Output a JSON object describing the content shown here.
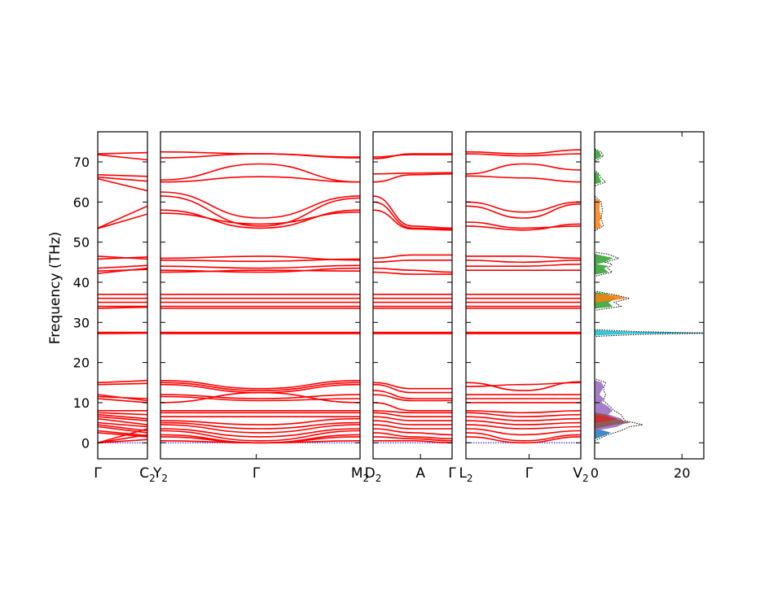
{
  "chart_data": {
    "type": "line",
    "title": "",
    "ylabel": "Frequency (THz)",
    "ylim": [
      -4,
      77.5
    ],
    "yticks": [
      0,
      10,
      20,
      30,
      40,
      50,
      60,
      70
    ],
    "band_color": "#ff0000",
    "zero_line_color": "#0000cc",
    "panels": [
      {
        "id": "p1",
        "x_labels": [
          {
            "pos": 0,
            "text": "Γ",
            "sub": ""
          },
          {
            "pos": 1,
            "text": "C",
            "sub": "2"
          }
        ],
        "bands": [
          [
            72,
            72.3
          ],
          [
            71.8,
            70.5
          ],
          [
            66.8,
            66.4
          ],
          [
            66.2,
            65.2
          ],
          [
            65.8,
            62.8
          ],
          [
            53.5,
            59
          ],
          [
            53.4,
            57
          ],
          [
            46.5,
            45.8
          ],
          [
            45.8,
            46.3
          ],
          [
            43.5,
            44.2
          ],
          [
            42.8,
            43.2
          ],
          [
            42.2,
            43.5
          ],
          [
            37,
            37
          ],
          [
            36,
            36
          ],
          [
            35,
            35
          ],
          [
            34,
            34
          ],
          [
            33.5,
            33.8
          ],
          [
            27.5,
            27.5
          ],
          [
            27.2,
            27.3
          ],
          [
            15,
            15.5
          ],
          [
            14.5,
            14.8
          ],
          [
            12,
            10.5
          ],
          [
            11.5,
            11
          ],
          [
            11,
            10
          ],
          [
            8,
            8
          ],
          [
            7.5,
            7
          ],
          [
            7,
            6
          ],
          [
            6.5,
            5.5
          ],
          [
            6,
            4.5
          ],
          [
            5,
            4
          ],
          [
            4.5,
            3
          ],
          [
            4,
            2.5
          ],
          [
            3,
            1.8
          ],
          [
            2.5,
            1.5
          ],
          [
            0,
            0.8
          ],
          [
            0,
            3.5
          ],
          [
            0,
            2
          ]
        ]
      },
      {
        "id": "p2",
        "x_labels": [
          {
            "pos": 0,
            "text": "Y",
            "sub": "2"
          },
          {
            "pos": 0.48,
            "text": "Γ",
            "sub": ""
          },
          {
            "pos": 1,
            "text": "M",
            "sub": "2"
          }
        ],
        "bands": [
          [
            72.5,
            72,
            71.2
          ],
          [
            71,
            72,
            71
          ],
          [
            65.5,
            69.5,
            65
          ],
          [
            65,
            66.3,
            65
          ],
          [
            62.5,
            56,
            61.5
          ],
          [
            61.5,
            54,
            61
          ],
          [
            58,
            53.5,
            58
          ],
          [
            57.2,
            54.5,
            57.5
          ],
          [
            46,
            46.5,
            45.5
          ],
          [
            45.5,
            45.2,
            45.8
          ],
          [
            44,
            43.5,
            44.2
          ],
          [
            43,
            42.5,
            43.5
          ],
          [
            42.5,
            43,
            42.8
          ],
          [
            37,
            37,
            37
          ],
          [
            36,
            36,
            36
          ],
          [
            35,
            35,
            35
          ],
          [
            34,
            34,
            34
          ],
          [
            33.5,
            33.5,
            33.5
          ],
          [
            27.5,
            27.5,
            27.5
          ],
          [
            27.2,
            27.2,
            27.2
          ],
          [
            15.5,
            13.5,
            15.5
          ],
          [
            15,
            13,
            15
          ],
          [
            14.5,
            12.5,
            14.5
          ],
          [
            12,
            11,
            12
          ],
          [
            11.5,
            10.5,
            11
          ],
          [
            10,
            12.5,
            10
          ],
          [
            8,
            8,
            8
          ],
          [
            7.5,
            7.5,
            7.5
          ],
          [
            6.5,
            6.5,
            6.5
          ],
          [
            5.5,
            4.5,
            6
          ],
          [
            5,
            3.5,
            5
          ],
          [
            4.5,
            2.5,
            4.5
          ],
          [
            3.5,
            1.5,
            3.5
          ],
          [
            3,
            0.5,
            3
          ],
          [
            2,
            0,
            2
          ],
          [
            1.5,
            0,
            1.5
          ],
          [
            0.5,
            0,
            0.5
          ]
        ]
      },
      {
        "id": "p3",
        "x_labels": [
          {
            "pos": 0,
            "text": "D",
            "sub": "2"
          },
          {
            "pos": 0.6,
            "text": "A",
            "sub": ""
          },
          {
            "pos": 1,
            "text": "Γ",
            "sub": ""
          }
        ],
        "bands": [
          [
            71.2,
            71.8,
            71.8
          ],
          [
            70.8,
            72,
            72
          ],
          [
            67,
            67.2,
            67.3
          ],
          [
            65,
            66.8,
            67
          ],
          [
            61.5,
            54,
            53.5
          ],
          [
            60,
            53.5,
            53.2
          ],
          [
            58,
            53.3,
            53
          ],
          [
            46,
            46.8,
            46.8
          ],
          [
            45,
            45.5,
            45.5
          ],
          [
            43.5,
            43,
            42.5
          ],
          [
            42.5,
            42,
            42
          ],
          [
            37,
            37,
            37
          ],
          [
            36,
            36,
            36
          ],
          [
            35,
            35,
            35
          ],
          [
            34,
            34,
            34
          ],
          [
            33.5,
            33.5,
            33.5
          ],
          [
            27.5,
            27.5,
            27.5
          ],
          [
            27.2,
            27.2,
            27.2
          ],
          [
            15,
            13.5,
            13.5
          ],
          [
            14.5,
            12.5,
            12.5
          ],
          [
            13,
            11,
            11
          ],
          [
            12,
            10.5,
            10.5
          ],
          [
            10,
            8,
            8
          ],
          [
            8,
            7.5,
            7.5
          ],
          [
            7.5,
            6.5,
            6.5
          ],
          [
            6.5,
            5.5,
            5.5
          ],
          [
            5.5,
            4.5,
            4.5
          ],
          [
            4.5,
            3.5,
            3.5
          ],
          [
            3.5,
            2.5,
            2
          ],
          [
            2.5,
            1.5,
            1
          ],
          [
            1.5,
            1,
            0.5
          ],
          [
            0.5,
            0.5,
            0
          ]
        ]
      },
      {
        "id": "p4",
        "x_labels": [
          {
            "pos": 0,
            "text": "L",
            "sub": "2"
          },
          {
            "pos": 0.55,
            "text": "Γ",
            "sub": ""
          },
          {
            "pos": 1,
            "text": "V",
            "sub": "2"
          }
        ],
        "bands": [
          [
            72.5,
            72,
            73
          ],
          [
            72,
            71.5,
            72
          ],
          [
            67,
            69.5,
            68
          ],
          [
            66.5,
            66,
            65
          ],
          [
            60,
            57.5,
            60
          ],
          [
            59,
            56,
            59.5
          ],
          [
            55,
            53.5,
            54
          ],
          [
            54,
            53,
            54.5
          ],
          [
            46.5,
            46.5,
            46
          ],
          [
            45.5,
            45,
            45.5
          ],
          [
            44,
            44,
            44.5
          ],
          [
            43,
            43,
            43
          ],
          [
            37,
            37,
            37
          ],
          [
            36,
            36,
            36
          ],
          [
            35,
            35,
            35
          ],
          [
            34,
            34,
            34
          ],
          [
            33.5,
            33.5,
            33.5
          ],
          [
            27.5,
            27.5,
            27.5
          ],
          [
            27.2,
            27.2,
            27.2
          ],
          [
            15,
            13,
            15.2
          ],
          [
            14,
            14.5,
            15
          ],
          [
            12,
            12,
            12
          ],
          [
            11,
            11,
            11
          ],
          [
            10,
            10,
            10
          ],
          [
            8,
            7.5,
            8
          ],
          [
            7.5,
            6.5,
            7
          ],
          [
            6.5,
            5.5,
            6
          ],
          [
            5.5,
            4.5,
            5
          ],
          [
            4.5,
            3.5,
            4
          ],
          [
            3.5,
            2,
            3
          ],
          [
            2.5,
            0.5,
            2
          ],
          [
            1.5,
            0,
            1.5
          ]
        ]
      }
    ],
    "dos": {
      "xlim": [
        0,
        25
      ],
      "xticks": [
        0,
        20
      ],
      "series": [
        {
          "color": "#1f77b4",
          "points": [
            [
              0,
              1
            ],
            [
              2.5,
              2
            ],
            [
              3.5,
              2.5
            ],
            [
              2,
              3
            ],
            [
              0,
              3.5
            ]
          ]
        },
        {
          "color": "#9467bd",
          "points": [
            [
              0,
              3
            ],
            [
              5,
              4
            ],
            [
              7,
              5
            ],
            [
              6,
              6
            ],
            [
              3,
              7
            ],
            [
              4,
              8
            ],
            [
              3,
              9
            ],
            [
              1.5,
              10
            ],
            [
              2,
              11
            ],
            [
              1,
              12
            ],
            [
              1.5,
              13
            ],
            [
              2,
              14
            ],
            [
              1.5,
              15
            ],
            [
              0,
              15.5
            ]
          ]
        },
        {
          "color": "#8c564b",
          "points": [
            [
              0,
              3.5
            ],
            [
              4,
              4.5
            ],
            [
              8,
              5
            ],
            [
              4.5,
              6
            ],
            [
              2.5,
              7
            ],
            [
              0,
              7.5
            ]
          ]
        },
        {
          "color": "#d62728",
          "points": [
            [
              0,
              5
            ],
            [
              3,
              5.5
            ],
            [
              5,
              6
            ],
            [
              2.5,
              6.5
            ],
            [
              0,
              7
            ]
          ]
        },
        {
          "color": "#17becf",
          "points": [
            [
              0,
              26.8
            ],
            [
              8,
              27.2
            ],
            [
              25,
              27.4
            ],
            [
              8,
              27.6
            ],
            [
              0,
              28
            ]
          ]
        },
        {
          "color": "#2ca02c",
          "points": [
            [
              0,
              33.5
            ],
            [
              4,
              34
            ],
            [
              3,
              35
            ],
            [
              5,
              36
            ],
            [
              3,
              37
            ],
            [
              0,
              37.5
            ]
          ]
        },
        {
          "color": "#ff7f0e",
          "points": [
            [
              0,
              35
            ],
            [
              3.5,
              35.5
            ],
            [
              7,
              36
            ],
            [
              5,
              36.7
            ],
            [
              0,
              37
            ]
          ]
        },
        {
          "color": "#2ca02c",
          "points": [
            [
              0,
              42
            ],
            [
              3,
              42.5
            ],
            [
              2,
              43.5
            ],
            [
              3,
              44
            ],
            [
              0,
              44.5
            ],
            [
              2,
              45
            ],
            [
              4,
              46
            ],
            [
              2,
              46.5
            ],
            [
              0,
              47
            ]
          ]
        },
        {
          "color": "#ff7f0e",
          "points": [
            [
              0,
              53
            ],
            [
              1.5,
              54
            ],
            [
              1,
              55
            ],
            [
              1.5,
              56
            ],
            [
              1,
              58
            ],
            [
              1.2,
              60
            ],
            [
              0,
              61
            ]
          ]
        },
        {
          "color": "#2ca02c",
          "points": [
            [
              0,
              64.5
            ],
            [
              1.5,
              65
            ],
            [
              1,
              66
            ],
            [
              0.8,
              67
            ],
            [
              0,
              67.5
            ]
          ]
        },
        {
          "color": "#2ca02c",
          "points": [
            [
              0,
              70.5
            ],
            [
              1.5,
              71.5
            ],
            [
              1,
              72.5
            ],
            [
              0,
              73
            ]
          ]
        }
      ],
      "total": [
        [
          0,
          0.5
        ],
        [
          3,
          2
        ],
        [
          6,
          3
        ],
        [
          8,
          4
        ],
        [
          11,
          4.5
        ],
        [
          7,
          5.5
        ],
        [
          6,
          7
        ],
        [
          4.5,
          8
        ],
        [
          3.5,
          9
        ],
        [
          2,
          10.5
        ],
        [
          2.5,
          12
        ],
        [
          2,
          13.5
        ],
        [
          2.5,
          15
        ],
        [
          0,
          16
        ],
        [
          0,
          26.5
        ],
        [
          10,
          27
        ],
        [
          26,
          27.3
        ],
        [
          10,
          27.7
        ],
        [
          0,
          28.2
        ],
        [
          0,
          33
        ],
        [
          6,
          34
        ],
        [
          4.5,
          35
        ],
        [
          8,
          36
        ],
        [
          4,
          37
        ],
        [
          0,
          37.8
        ],
        [
          0,
          41.5
        ],
        [
          4,
          42.5
        ],
        [
          3,
          43.5
        ],
        [
          4,
          44.5
        ],
        [
          2.5,
          45
        ],
        [
          5.5,
          46
        ],
        [
          3,
          47
        ],
        [
          0,
          47.5
        ],
        [
          0,
          52.8
        ],
        [
          2,
          54
        ],
        [
          1.5,
          56
        ],
        [
          1.8,
          58
        ],
        [
          1.5,
          60
        ],
        [
          0,
          61.5
        ],
        [
          0,
          64
        ],
        [
          2.5,
          65
        ],
        [
          1.5,
          66
        ],
        [
          1,
          67
        ],
        [
          0,
          68
        ],
        [
          0,
          70
        ],
        [
          2,
          71.5
        ],
        [
          1.5,
          72.5
        ],
        [
          0,
          73.2
        ]
      ]
    }
  }
}
